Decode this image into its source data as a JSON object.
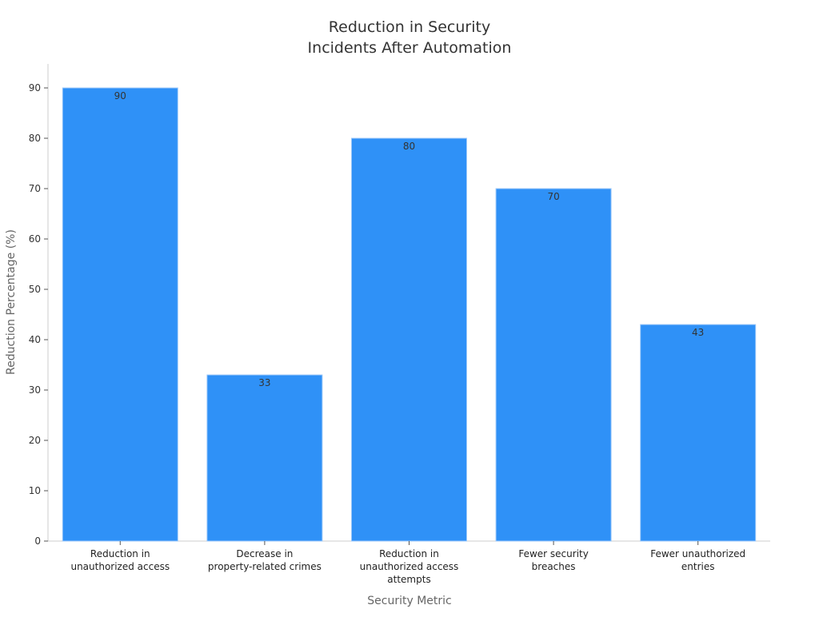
{
  "chart_data": {
    "type": "bar",
    "title": "Reduction in Security\nIncidents After Automation",
    "xlabel": "Security Metric",
    "ylabel": "Reduction Percentage (%)",
    "categories": [
      "Reduction in\nunauthorized access",
      "Decrease in\nproperty-related crimes",
      "Reduction in\nunauthorized access\nattempts",
      "Fewer security\nbreaches",
      "Fewer unauthorized\nentries"
    ],
    "values": [
      90,
      33,
      80,
      70,
      43
    ],
    "ylim": [
      0,
      95
    ],
    "yticks": [
      0,
      10,
      20,
      30,
      40,
      50,
      60,
      70,
      80,
      90
    ],
    "grid": false,
    "bar_color": "#2f91f7",
    "data_labels": true
  }
}
